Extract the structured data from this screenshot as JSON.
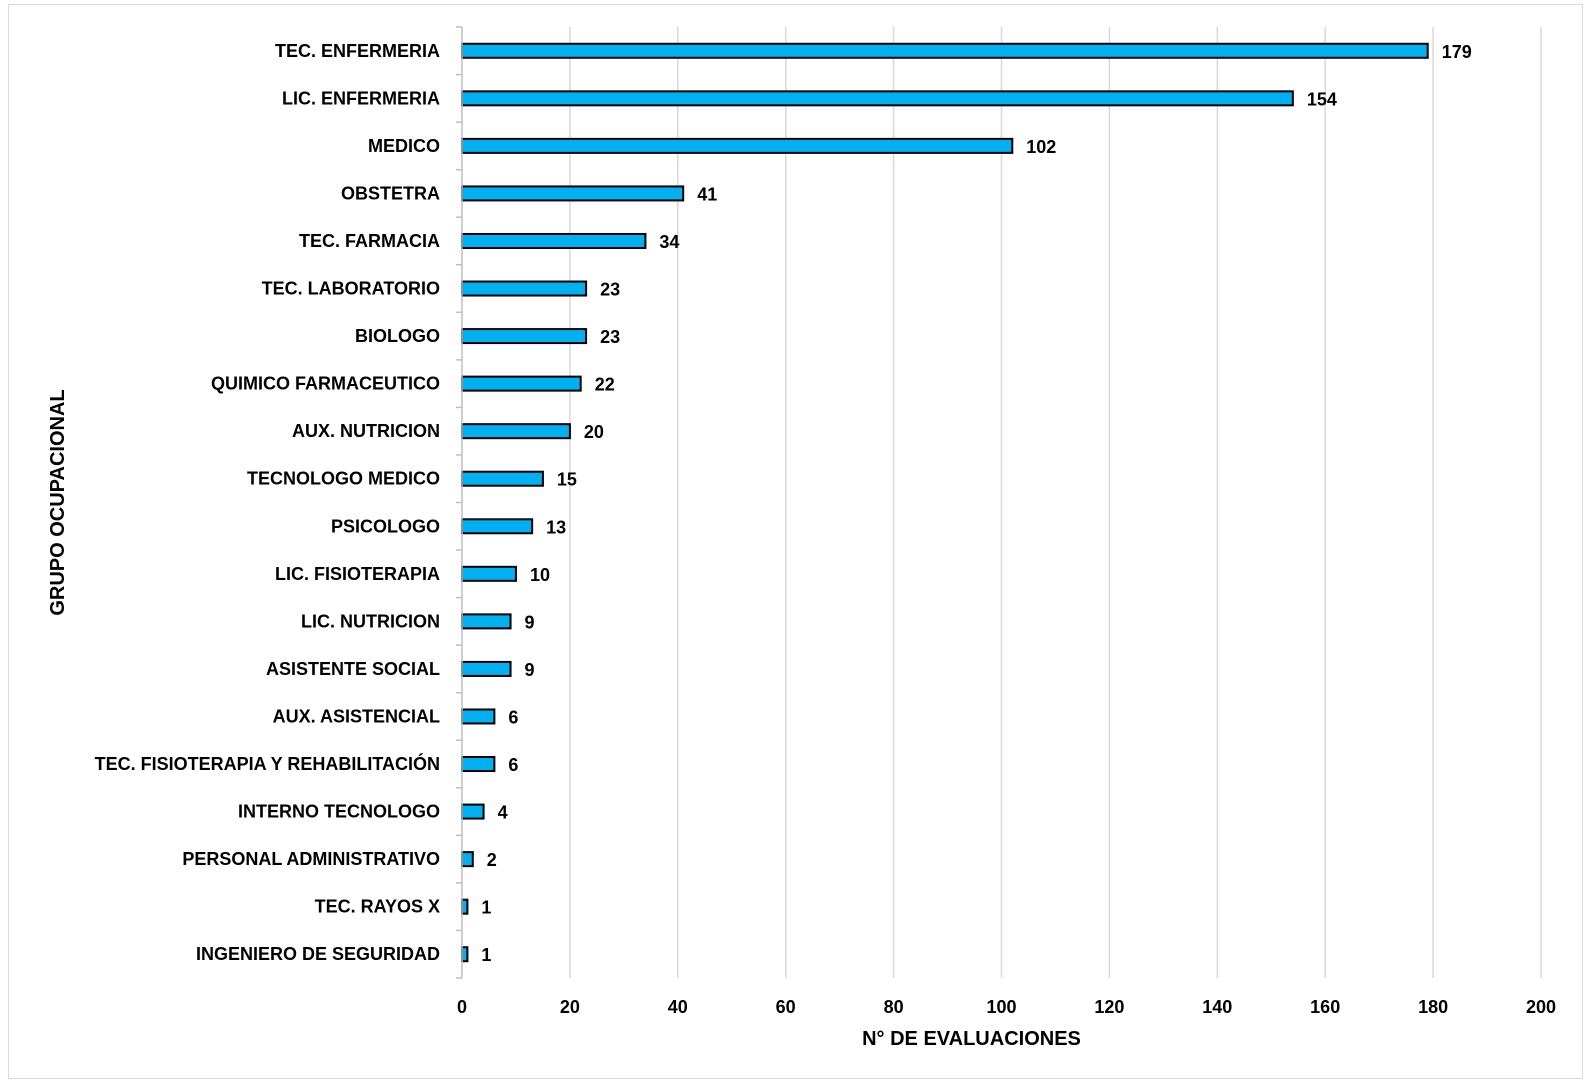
{
  "chart_data": {
    "type": "bar",
    "orientation": "horizontal",
    "categories": [
      "TEC. ENFERMERIA",
      "LIC. ENFERMERIA",
      "MEDICO",
      "OBSTETRA",
      "TEC. FARMACIA",
      "TEC. LABORATORIO",
      "BIOLOGO",
      "QUIMICO FARMACEUTICO",
      "AUX. NUTRICION",
      "TECNOLOGO MEDICO",
      "PSICOLOGO",
      "LIC. FISIOTERAPIA",
      "LIC. NUTRICION",
      "ASISTENTE SOCIAL",
      "AUX. ASISTENCIAL",
      "TEC. FISIOTERAPIA Y REHABILITACIÓN",
      "INTERNO TECNOLOGO",
      "PERSONAL ADMINISTRATIVO",
      "TEC. RAYOS X",
      "INGENIERO DE SEGURIDAD"
    ],
    "values": [
      179,
      154,
      102,
      41,
      34,
      23,
      23,
      22,
      20,
      15,
      13,
      10,
      9,
      9,
      6,
      6,
      4,
      2,
      1,
      1
    ],
    "xlabel": "N° DE EVALUACIONES",
    "ylabel": "GRUPO OCUPACIONAL",
    "xlim": [
      0,
      200
    ],
    "xticks": [
      0,
      20,
      40,
      60,
      80,
      100,
      120,
      140,
      160,
      180,
      200
    ],
    "grid": "vertical",
    "data_labels": true,
    "bar_color": "#00B0F0",
    "bar_edge_color": "#000000"
  }
}
